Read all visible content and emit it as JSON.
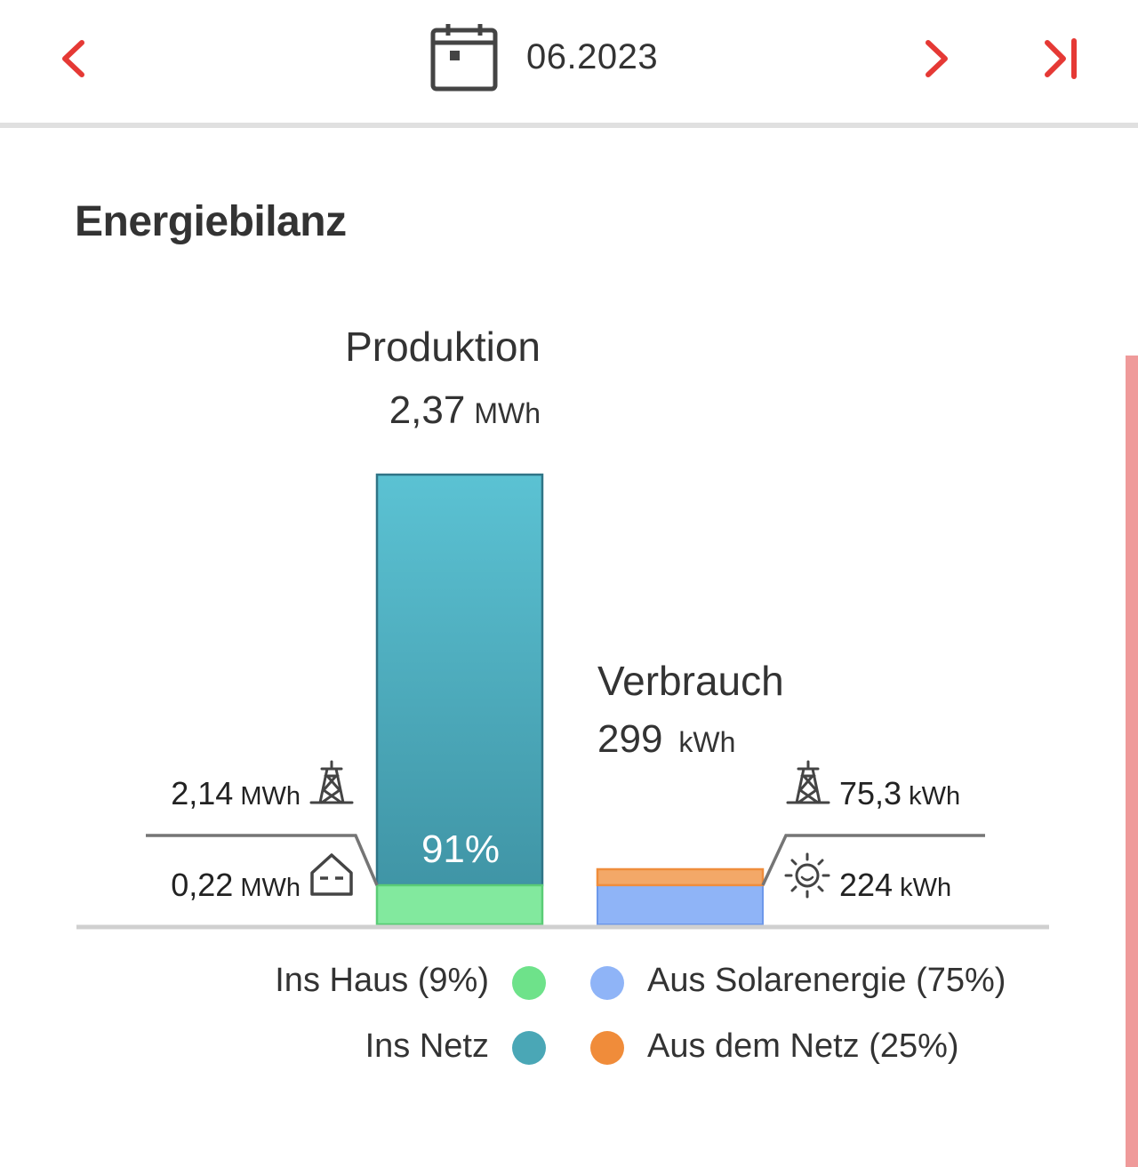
{
  "header": {
    "period": "06.2023"
  },
  "section_title": "Energiebilanz",
  "colors": {
    "accent": "#e53935",
    "ins_haus": "#6ee28a",
    "ins_netz": "#4aa7b6",
    "aus_solar": "#8fb4f7",
    "aus_netz": "#f08c3a"
  },
  "icons": {
    "prev": "chevron-left-icon",
    "next": "chevron-right-icon",
    "last": "skip-to-end-icon",
    "calendar": "calendar-icon",
    "grid": "power-pylon-icon",
    "house": "house-icon",
    "sun": "sun-icon"
  },
  "chart_data": {
    "type": "bar",
    "stacked": true,
    "production": {
      "title": "Produktion",
      "total_value": "2,37",
      "total_unit": "MWh",
      "total_mwh": 2.37,
      "percent_label": "91%",
      "segments": [
        {
          "name": "Ins Haus",
          "value_mwh": 0.22,
          "value_text": "0,22",
          "unit": "MWh",
          "icon": "house-icon"
        },
        {
          "name": "Ins Netz",
          "value_mwh": 2.14,
          "value_text": "2,14",
          "unit": "MWh",
          "icon": "power-pylon-icon"
        }
      ]
    },
    "consumption": {
      "title": "Verbrauch",
      "total_value": "299",
      "total_unit": "kWh",
      "total_kwh": 299,
      "segments": [
        {
          "name": "Aus Solarenergie",
          "value_kwh": 224,
          "value_text": "224",
          "unit": "kWh",
          "icon": "sun-icon"
        },
        {
          "name": "Aus dem Netz",
          "value_kwh": 75.3,
          "value_text": "75,3",
          "unit": "kWh",
          "icon": "power-pylon-icon"
        }
      ]
    },
    "legend": [
      {
        "label": "Ins Haus (9%)",
        "color": "#6ee28a"
      },
      {
        "label": "Aus Solarenergie (75%)",
        "color": "#8fb4f7"
      },
      {
        "label": "Ins Netz",
        "color": "#4aa7b6"
      },
      {
        "label": "Aus dem Netz (25%)",
        "color": "#f08c3a"
      }
    ]
  }
}
